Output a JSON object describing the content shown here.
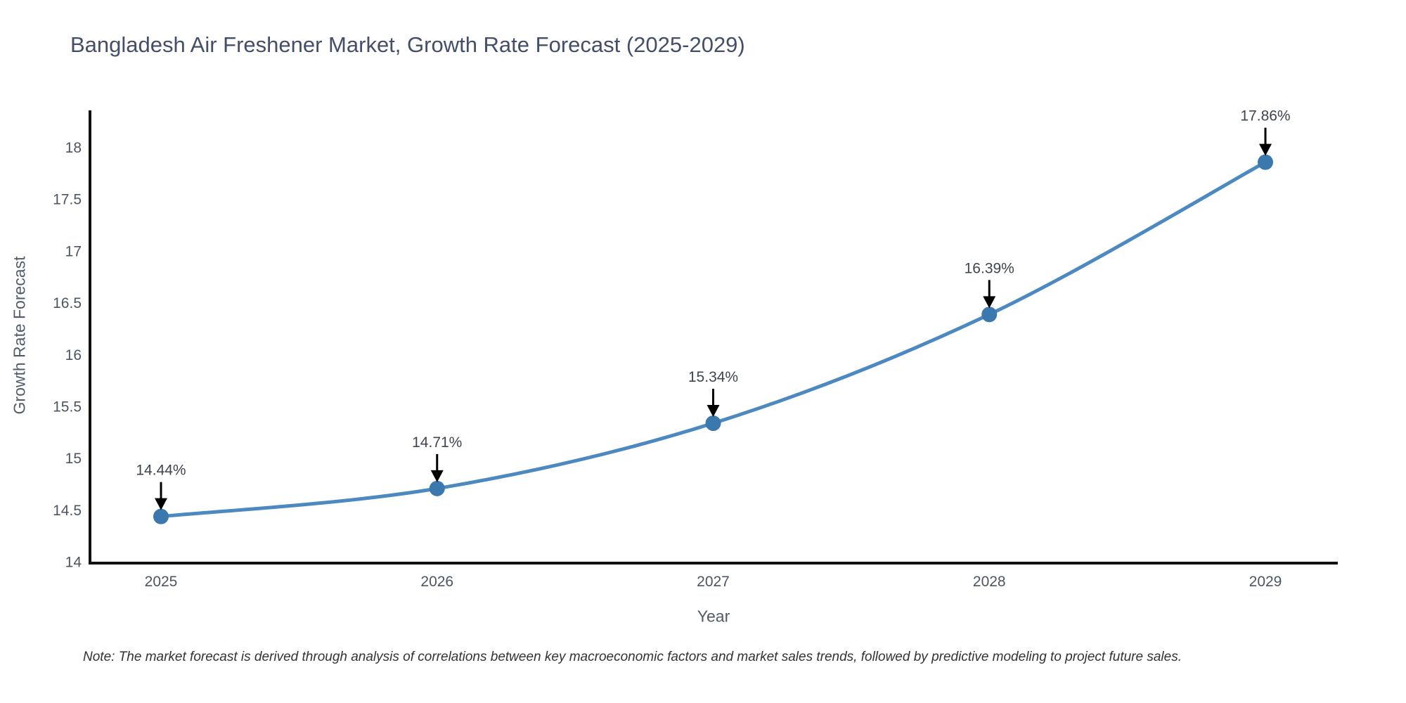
{
  "title": "Bangladesh Air Freshener Market, Growth Rate Forecast (2025-2029)",
  "note": "Note: The market forecast is derived through analysis of correlations between key macroeconomic factors and market sales trends, followed by predictive modeling to project future sales.",
  "chart_data": {
    "type": "line",
    "title": "Bangladesh Air Freshener Market, Growth Rate Forecast (2025-2029)",
    "xlabel": "Year",
    "ylabel": "Growth Rate Forecast",
    "categories": [
      "2025",
      "2026",
      "2027",
      "2028",
      "2029"
    ],
    "series": [
      {
        "name": "Growth Rate Forecast",
        "values": [
          14.44,
          14.71,
          15.34,
          16.39,
          17.86
        ],
        "point_labels": [
          "14.44%",
          "14.71%",
          "15.34%",
          "16.39%",
          "17.86%"
        ]
      }
    ],
    "yticks": [
      14,
      14.5,
      15,
      15.5,
      16,
      16.5,
      17,
      17.5,
      18
    ],
    "ylim": [
      13.99,
      18.36
    ],
    "line_shape": "spline",
    "grid": false,
    "legend": "none",
    "annotations": "value labels above each point with downward black arrows",
    "colors": {
      "line": "#4c89c0",
      "marker": "#3a78ad",
      "axis": "#111111",
      "tick_label": "#4c5663",
      "annotation_text": "#3e4550",
      "arrow": "#000000",
      "title": "#434f69",
      "axis_title": "#515c6b",
      "note": "#333333",
      "background": "#ffffff"
    }
  }
}
